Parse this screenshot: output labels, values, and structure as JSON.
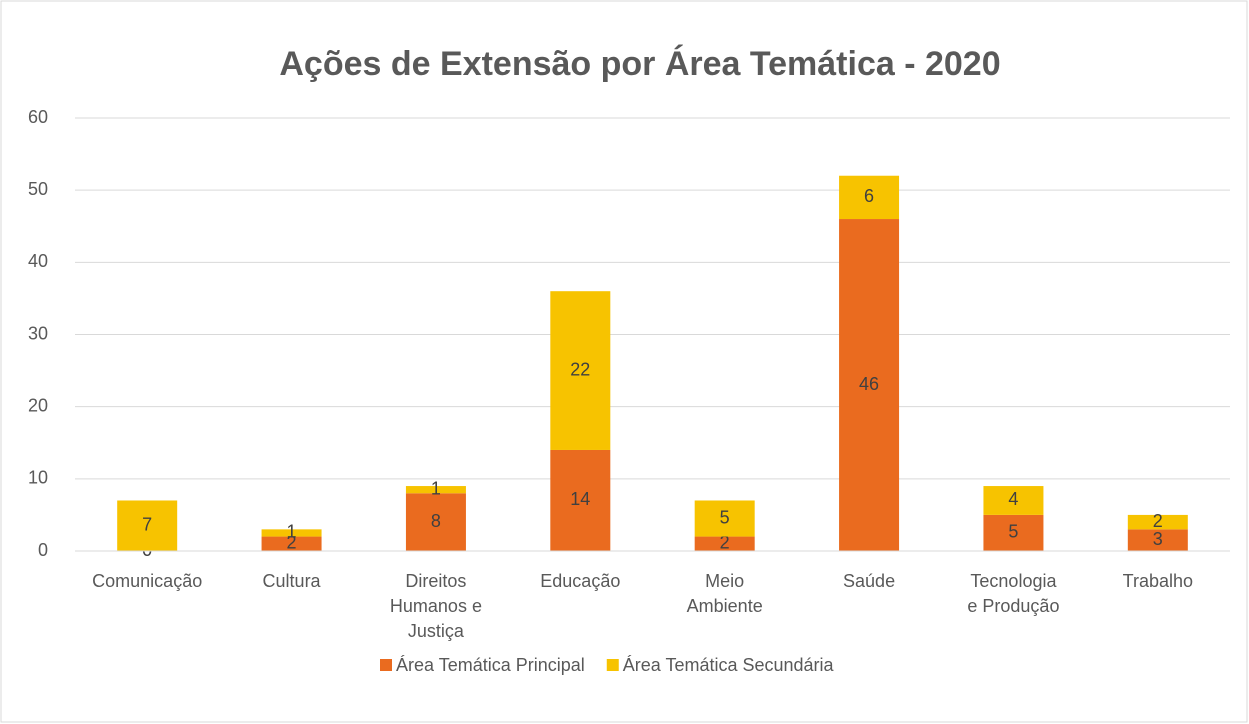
{
  "chart_data": {
    "type": "stacked_bar",
    "title": "Ações de Extensão por Área Temática - 2020",
    "categories": [
      "Comunicação",
      "Cultura",
      "Direitos Humanos e Justiça",
      "Educação",
      "Meio Ambiente",
      "Saúde",
      "Tecnologia e Produção",
      "Trabalho"
    ],
    "series": [
      {
        "name": "Área Temática Principal",
        "color": "#ea6b1f",
        "values": [
          0,
          2,
          8,
          14,
          2,
          46,
          5,
          3
        ]
      },
      {
        "name": "Área Temática Secundária",
        "color": "#f7c300",
        "values": [
          7,
          1,
          1,
          22,
          5,
          6,
          4,
          2
        ]
      }
    ],
    "ylim": [
      0,
      60
    ],
    "yticks": [
      0,
      10,
      20,
      30,
      40,
      50,
      60
    ],
    "grid": true,
    "legend": "bottom"
  }
}
